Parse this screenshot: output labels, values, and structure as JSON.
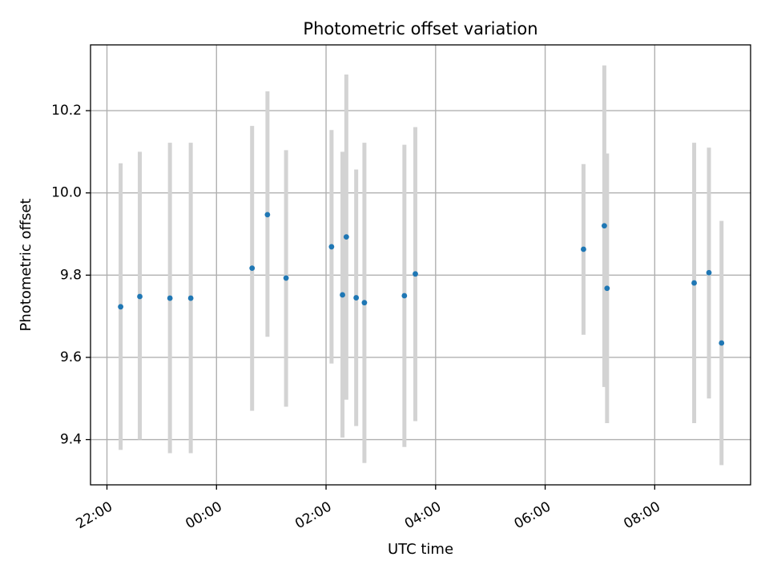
{
  "chart_data": {
    "type": "scatter",
    "title": "Photometric offset variation",
    "xlabel": "UTC time",
    "ylabel": "Photometric offset",
    "x_unit": "hours since 00:00",
    "xlim": [
      -2.3,
      9.75
    ],
    "ylim": [
      9.29,
      10.36
    ],
    "xticks": [
      {
        "value": -2,
        "label": "22:00"
      },
      {
        "value": 0,
        "label": "00:00"
      },
      {
        "value": 2,
        "label": "02:00"
      },
      {
        "value": 4,
        "label": "04:00"
      },
      {
        "value": 6,
        "label": "06:00"
      },
      {
        "value": 8,
        "label": "08:00"
      }
    ],
    "yticks": [
      {
        "value": 9.4,
        "label": "9.4"
      },
      {
        "value": 9.6,
        "label": "9.6"
      },
      {
        "value": 9.8,
        "label": "9.8"
      },
      {
        "value": 10.0,
        "label": "10.0"
      },
      {
        "value": 10.2,
        "label": "10.2"
      }
    ],
    "grid": true,
    "point_color": "#1f77b4",
    "errorbar_color": "#d3d3d3",
    "points": [
      {
        "x": -1.75,
        "y": 9.723,
        "low": 9.375,
        "high": 10.072
      },
      {
        "x": -1.4,
        "y": 9.748,
        "low": 9.4,
        "high": 10.1
      },
      {
        "x": -0.85,
        "y": 9.744,
        "low": 9.367,
        "high": 10.122
      },
      {
        "x": -0.47,
        "y": 9.744,
        "low": 9.367,
        "high": 10.122
      },
      {
        "x": 0.65,
        "y": 9.817,
        "low": 9.47,
        "high": 10.163
      },
      {
        "x": 0.93,
        "y": 9.947,
        "low": 9.65,
        "high": 10.247
      },
      {
        "x": 1.27,
        "y": 9.793,
        "low": 9.48,
        "high": 10.104
      },
      {
        "x": 2.1,
        "y": 9.869,
        "low": 9.585,
        "high": 10.153
      },
      {
        "x": 2.3,
        "y": 9.752,
        "low": 9.405,
        "high": 10.1
      },
      {
        "x": 2.37,
        "y": 9.893,
        "low": 9.497,
        "high": 10.288
      },
      {
        "x": 2.55,
        "y": 9.745,
        "low": 9.433,
        "high": 10.057
      },
      {
        "x": 2.7,
        "y": 9.733,
        "low": 9.343,
        "high": 10.122
      },
      {
        "x": 3.43,
        "y": 9.75,
        "low": 9.382,
        "high": 10.117
      },
      {
        "x": 3.63,
        "y": 9.803,
        "low": 9.445,
        "high": 10.16
      },
      {
        "x": 6.7,
        "y": 9.863,
        "low": 9.655,
        "high": 10.07
      },
      {
        "x": 7.08,
        "y": 9.92,
        "low": 9.528,
        "high": 10.31
      },
      {
        "x": 7.13,
        "y": 9.768,
        "low": 9.44,
        "high": 10.096
      },
      {
        "x": 8.72,
        "y": 9.781,
        "low": 9.44,
        "high": 10.122
      },
      {
        "x": 8.99,
        "y": 9.806,
        "low": 9.5,
        "high": 10.11
      },
      {
        "x": 9.22,
        "y": 9.635,
        "low": 9.338,
        "high": 9.932
      }
    ]
  }
}
